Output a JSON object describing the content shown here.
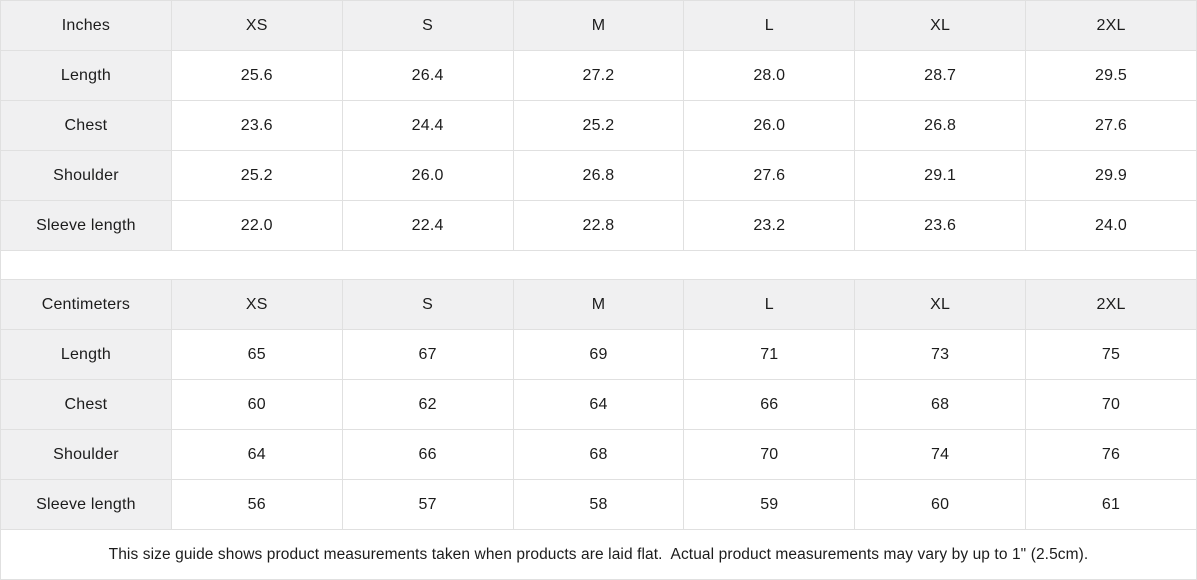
{
  "colors": {
    "header_bg": "#f0f0f1",
    "border": "#e0e0e0",
    "text": "#1c1c1c",
    "background": "#ffffff"
  },
  "tables": [
    {
      "unit_label": "Inches",
      "sizes": [
        "XS",
        "S",
        "M",
        "L",
        "XL",
        "2XL"
      ],
      "rows": [
        {
          "label": "Length",
          "values": [
            "25.6",
            "26.4",
            "27.2",
            "28.0",
            "28.7",
            "29.5"
          ]
        },
        {
          "label": "Chest",
          "values": [
            "23.6",
            "24.4",
            "25.2",
            "26.0",
            "26.8",
            "27.6"
          ]
        },
        {
          "label": "Shoulder",
          "values": [
            "25.2",
            "26.0",
            "26.8",
            "27.6",
            "29.1",
            "29.9"
          ]
        },
        {
          "label": "Sleeve length",
          "values": [
            "22.0",
            "22.4",
            "22.8",
            "23.2",
            "23.6",
            "24.0"
          ]
        }
      ]
    },
    {
      "unit_label": "Centimeters",
      "sizes": [
        "XS",
        "S",
        "M",
        "L",
        "XL",
        "2XL"
      ],
      "rows": [
        {
          "label": "Length",
          "values": [
            "65",
            "67",
            "69",
            "71",
            "73",
            "75"
          ]
        },
        {
          "label": "Chest",
          "values": [
            "60",
            "62",
            "64",
            "66",
            "68",
            "70"
          ]
        },
        {
          "label": "Shoulder",
          "values": [
            "64",
            "66",
            "68",
            "70",
            "74",
            "76"
          ]
        },
        {
          "label": "Sleeve length",
          "values": [
            "56",
            "57",
            "58",
            "59",
            "60",
            "61"
          ]
        }
      ]
    }
  ],
  "footer": {
    "note": "This size guide shows product measurements taken when products are laid flat.  Actual product measurements may vary by up to 1\" (2.5cm)."
  }
}
